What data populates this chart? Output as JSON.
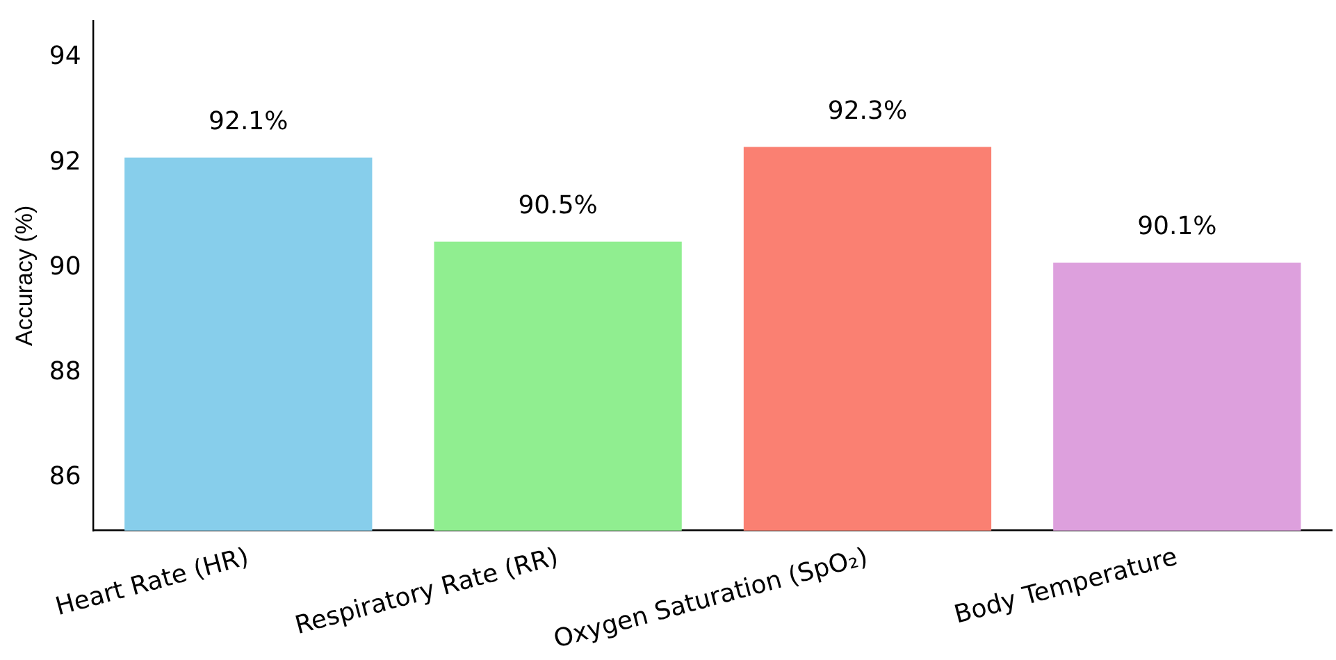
{
  "chart_data": {
    "type": "bar",
    "ylabel": "Accuracy (%)",
    "categories": [
      "Heart Rate (HR)",
      "Respiratory Rate (RR)",
      "Oxygen Saturation (SpO₂)",
      "Body Temperature"
    ],
    "values": [
      92.1,
      90.5,
      92.3,
      90.1
    ],
    "colors": [
      "#87ceeb",
      "#90ee90",
      "#fa8072",
      "#dda0dd"
    ],
    "value_labels": [
      "92.1%",
      "90.5%",
      "92.3%",
      "90.1%"
    ],
    "ylim": [
      85,
      94.7
    ],
    "yticks": [
      86,
      88,
      90,
      92,
      94
    ],
    "grid": false,
    "legend": false
  }
}
